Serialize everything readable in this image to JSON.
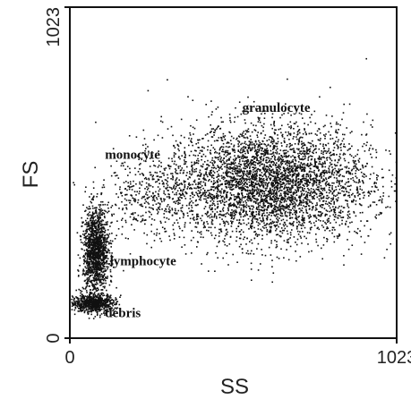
{
  "chart_data": {
    "type": "scatter",
    "title": "",
    "xlabel": "SS",
    "ylabel": "FS",
    "xlim": [
      0,
      1023
    ],
    "ylim": [
      0,
      1023
    ],
    "x_ticks": [
      {
        "value": 0,
        "label": "0"
      },
      {
        "value": 1023,
        "label": "1023"
      }
    ],
    "y_ticks": [
      {
        "value": 0,
        "label": "0"
      },
      {
        "value": 1023,
        "label": "1023"
      }
    ],
    "grid": false,
    "legend": "none",
    "point_color": "#111111",
    "annotations": [
      {
        "text": "granulocyte",
        "x": 540,
        "y": 700
      },
      {
        "text": "monocyte",
        "x": 110,
        "y": 555
      },
      {
        "text": "lymphocyte",
        "x": 125,
        "y": 225
      },
      {
        "text": "debris",
        "x": 110,
        "y": 65
      }
    ],
    "clusters": [
      {
        "name": "granulocyte",
        "center": [
          620,
          480
        ],
        "spread": [
          160,
          90
        ],
        "count": 4200
      },
      {
        "name": "lymphocyte",
        "center": [
          80,
          270
        ],
        "spread": [
          20,
          65
        ],
        "count": 1400
      },
      {
        "name": "debris",
        "center": [
          70,
          110
        ],
        "spread": [
          35,
          14
        ],
        "count": 700
      },
      {
        "name": "monocyte",
        "center": [
          250,
          430
        ],
        "spread": [
          80,
          60
        ],
        "count": 350
      }
    ]
  }
}
